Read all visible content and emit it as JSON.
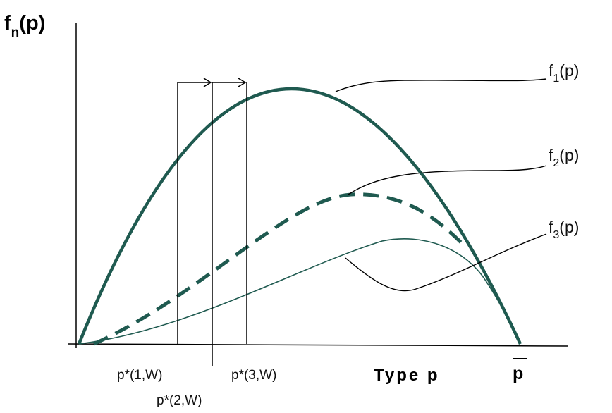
{
  "axis": {
    "y_label_main": "f",
    "y_label_sub": "n",
    "y_label_tail": "(p)",
    "x_label": "Type p",
    "x_end_label": "p"
  },
  "curves": [
    {
      "main": "f",
      "sub": "1",
      "tail": "(p)"
    },
    {
      "main": "f",
      "sub": "2",
      "tail": "(p)"
    },
    {
      "main": "f",
      "sub": "3",
      "tail": "(p)"
    }
  ],
  "markers": [
    {
      "label": "p*(1,W)"
    },
    {
      "label": "p*(2,W)"
    },
    {
      "label": "p*(3,W)"
    }
  ],
  "colors": {
    "curve": "#1f5a50",
    "line": "#000000"
  }
}
